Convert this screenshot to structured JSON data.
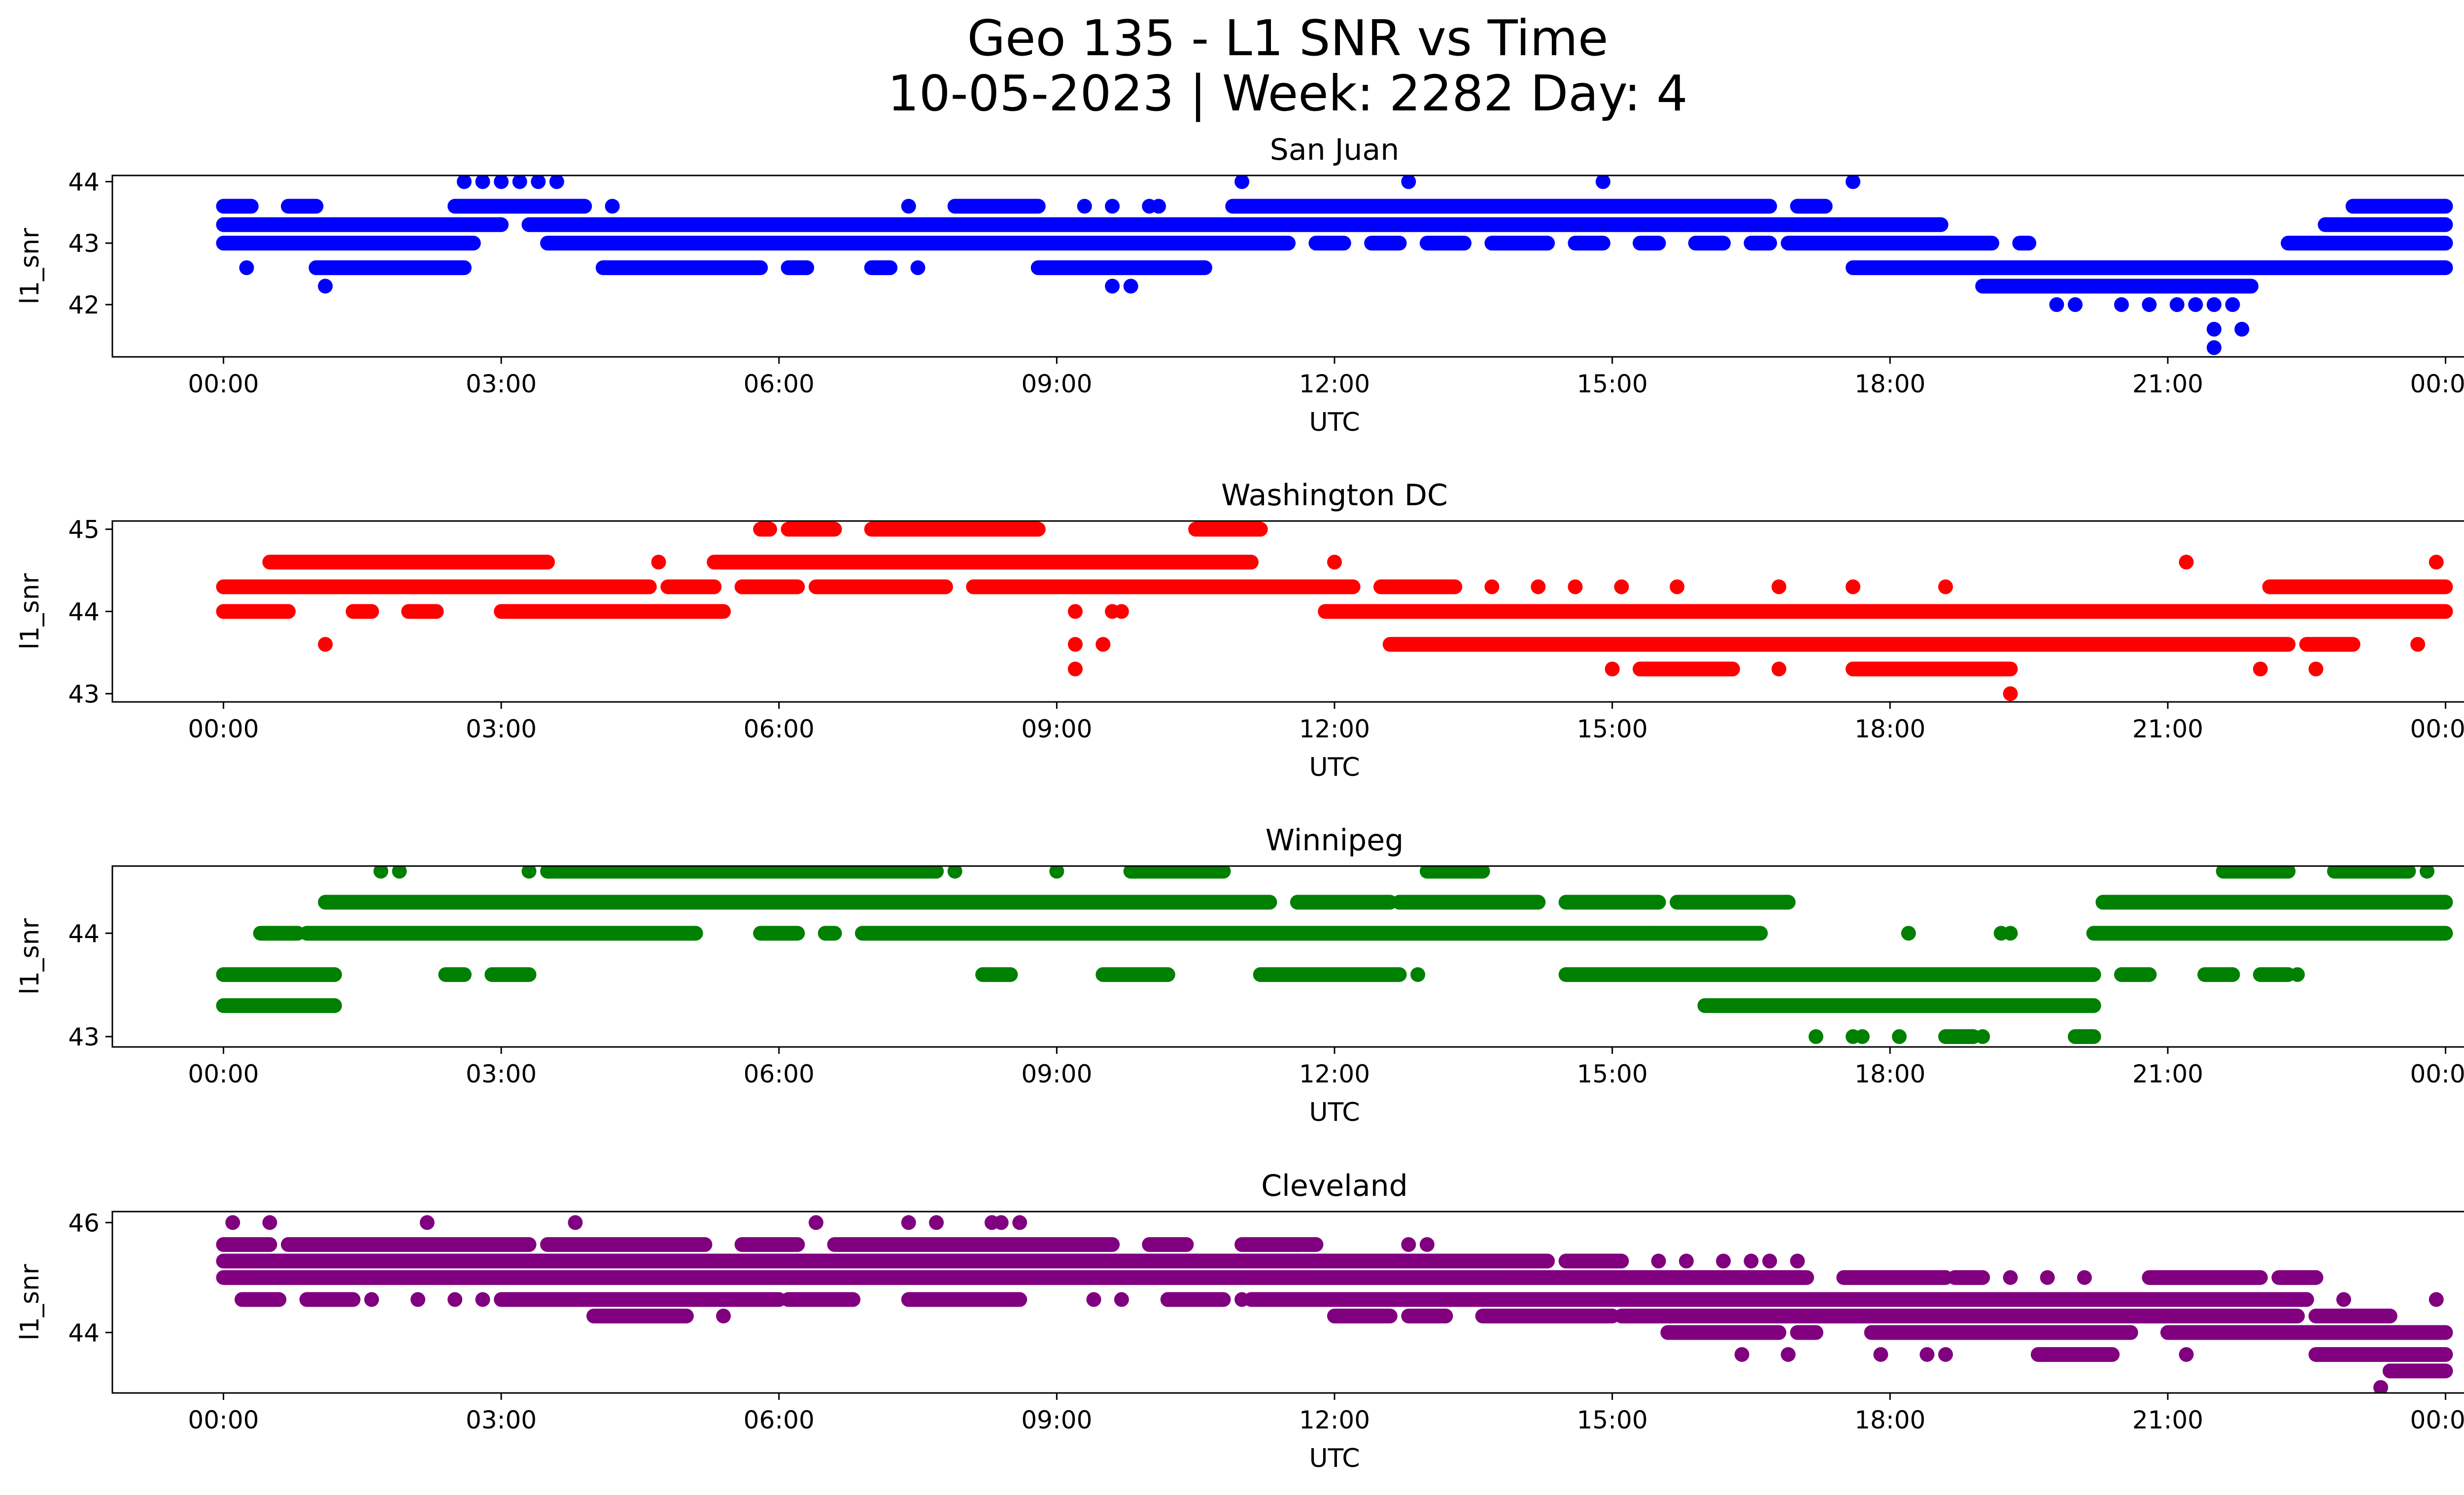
{
  "figure": {
    "title_line1": "Geo 135 - L1 SNR vs Time",
    "title_line2": "10-05-2023 | Week: 2282 Day: 4"
  },
  "chart_data": [
    {
      "type": "scatter",
      "title": "San Juan",
      "xlabel": "UTC",
      "ylabel": "l1_snr",
      "color": "#0000ff",
      "xlim": [
        -1.2,
        25.2
      ],
      "ylim": [
        41.15,
        44.1
      ],
      "xticks": [
        "00:00",
        "03:00",
        "06:00",
        "09:00",
        "12:00",
        "15:00",
        "18:00",
        "21:00",
        "00:00"
      ],
      "yticks": [
        42,
        43,
        44
      ],
      "bands": [
        {
          "y": 43.0,
          "ranges": [
            [
              0.0,
              2.7
            ],
            [
              3.5,
              11.5
            ],
            [
              11.8,
              12.1
            ],
            [
              12.4,
              12.7
            ],
            [
              13.0,
              13.4
            ],
            [
              13.7,
              14.3
            ],
            [
              14.6,
              14.9
            ],
            [
              15.3,
              15.5
            ],
            [
              15.9,
              16.2
            ],
            [
              16.5,
              16.7
            ],
            [
              16.9,
              19.1
            ],
            [
              19.4,
              19.5
            ],
            [
              22.3,
              24.0
            ]
          ]
        },
        {
          "y": 43.3,
          "ranges": [
            [
              0.0,
              3.0
            ],
            [
              3.3,
              17.0
            ],
            [
              17.0,
              18.55
            ],
            [
              22.7,
              24.0
            ]
          ]
        },
        {
          "y": 43.6,
          "ranges": [
            [
              0.0,
              0.3
            ],
            [
              0.7,
              1.0
            ],
            [
              2.5,
              3.9
            ],
            [
              7.9,
              8.8
            ],
            [
              10.9,
              16.7
            ],
            [
              17.0,
              17.3
            ],
            [
              23.0,
              24.0
            ]
          ]
        },
        {
          "y": 42.6,
          "ranges": [
            [
              1.0,
              2.6
            ],
            [
              4.1,
              5.8
            ],
            [
              6.1,
              6.3
            ],
            [
              7.0,
              7.2
            ],
            [
              8.8,
              10.6
            ],
            [
              17.6,
              24.0
            ]
          ]
        },
        {
          "y": 42.3,
          "ranges": [
            [
              19.0,
              21.9
            ]
          ]
        }
      ],
      "points": [
        [
          0.25,
          42.6
        ],
        [
          1.1,
          42.3
        ],
        [
          2.6,
          44.0
        ],
        [
          2.8,
          44.0
        ],
        [
          3.0,
          44.0
        ],
        [
          3.2,
          44.0
        ],
        [
          3.4,
          44.0
        ],
        [
          3.6,
          44.0
        ],
        [
          4.2,
          43.6
        ],
        [
          7.4,
          43.6
        ],
        [
          7.5,
          42.6
        ],
        [
          9.3,
          43.6
        ],
        [
          9.6,
          43.6
        ],
        [
          10.0,
          43.6
        ],
        [
          10.1,
          43.6
        ],
        [
          9.6,
          42.3
        ],
        [
          9.8,
          42.3
        ],
        [
          11.0,
          44.0
        ],
        [
          12.8,
          44.0
        ],
        [
          14.9,
          44.0
        ],
        [
          17.6,
          44.0
        ],
        [
          19.8,
          42.0
        ],
        [
          20.0,
          42.0
        ],
        [
          20.5,
          42.0
        ],
        [
          20.8,
          42.0
        ],
        [
          21.1,
          42.0
        ],
        [
          21.3,
          42.0
        ],
        [
          21.5,
          42.0
        ],
        [
          21.7,
          42.0
        ],
        [
          21.5,
          41.6
        ],
        [
          21.5,
          41.3
        ],
        [
          21.8,
          41.6
        ]
      ]
    },
    {
      "type": "scatter",
      "title": "Washington DC",
      "xlabel": "UTC",
      "ylabel": "l1_snr",
      "color": "#ff0000",
      "xlim": [
        -1.2,
        25.2
      ],
      "ylim": [
        42.9,
        45.1
      ],
      "xticks": [
        "00:00",
        "03:00",
        "06:00",
        "09:00",
        "12:00",
        "15:00",
        "18:00",
        "21:00",
        "00:00"
      ],
      "yticks": [
        43,
        44,
        45
      ],
      "bands": [
        {
          "y": 44.3,
          "ranges": [
            [
              0.0,
              4.6
            ],
            [
              4.8,
              5.3
            ],
            [
              5.6,
              6.2
            ],
            [
              6.4,
              7.8
            ],
            [
              8.1,
              12.2
            ],
            [
              12.5,
              13.3
            ],
            [
              22.1,
              24.0
            ]
          ]
        },
        {
          "y": 44.0,
          "ranges": [
            [
              0.0,
              0.7
            ],
            [
              1.4,
              1.6
            ],
            [
              2.0,
              2.3
            ],
            [
              3.0,
              5.4
            ],
            [
              11.9,
              24.0
            ]
          ]
        },
        {
          "y": 44.6,
          "ranges": [
            [
              0.5,
              3.5
            ],
            [
              5.3,
              11.1
            ]
          ]
        },
        {
          "y": 45.0,
          "ranges": [
            [
              5.8,
              5.9
            ],
            [
              6.1,
              6.6
            ],
            [
              7.0,
              8.8
            ],
            [
              10.5,
              11.2
            ]
          ]
        },
        {
          "y": 43.6,
          "ranges": [
            [
              12.6,
              22.3
            ],
            [
              22.5,
              23.0
            ]
          ]
        },
        {
          "y": 43.3,
          "ranges": [
            [
              15.3,
              16.3
            ],
            [
              17.6,
              19.3
            ]
          ]
        }
      ],
      "points": [
        [
          1.1,
          43.6
        ],
        [
          9.2,
          44.0
        ],
        [
          9.2,
          43.6
        ],
        [
          9.2,
          43.3
        ],
        [
          9.5,
          43.6
        ],
        [
          9.6,
          44.0
        ],
        [
          9.7,
          44.0
        ],
        [
          4.7,
          44.6
        ],
        [
          12.0,
          44.6
        ],
        [
          13.7,
          44.3
        ],
        [
          14.2,
          44.3
        ],
        [
          14.6,
          44.3
        ],
        [
          15.1,
          44.3
        ],
        [
          15.7,
          44.3
        ],
        [
          16.8,
          44.3
        ],
        [
          17.6,
          44.3
        ],
        [
          18.6,
          44.3
        ],
        [
          21.2,
          44.6
        ],
        [
          22.5,
          44.3
        ],
        [
          23.7,
          43.6
        ],
        [
          23.9,
          44.6
        ],
        [
          19.3,
          43.0
        ],
        [
          15.0,
          43.3
        ],
        [
          16.8,
          43.3
        ],
        [
          22.0,
          43.3
        ],
        [
          22.6,
          43.3
        ]
      ]
    },
    {
      "type": "scatter",
      "title": "Winnipeg",
      "xlabel": "UTC",
      "ylabel": "l1_snr",
      "color": "#008000",
      "xlim": [
        -1.2,
        25.2
      ],
      "ylim": [
        42.9,
        44.65
      ],
      "xticks": [
        "00:00",
        "03:00",
        "06:00",
        "09:00",
        "12:00",
        "15:00",
        "18:00",
        "21:00",
        "00:00"
      ],
      "yticks": [
        43,
        44
      ],
      "bands": [
        {
          "y": 43.6,
          "ranges": [
            [
              0.0,
              1.2
            ],
            [
              2.4,
              2.6
            ],
            [
              2.9,
              3.3
            ],
            [
              8.2,
              8.5
            ],
            [
              9.5,
              10.2
            ],
            [
              11.2,
              12.7
            ],
            [
              14.5,
              20.2
            ],
            [
              20.5,
              20.8
            ],
            [
              21.4,
              21.7
            ],
            [
              22.0,
              22.3
            ]
          ]
        },
        {
          "y": 43.3,
          "ranges": [
            [
              0.0,
              1.2
            ],
            [
              16.0,
              20.2
            ]
          ]
        },
        {
          "y": 44.0,
          "ranges": [
            [
              0.4,
              0.8
            ],
            [
              0.9,
              5.1
            ],
            [
              5.8,
              6.2
            ],
            [
              6.5,
              6.6
            ],
            [
              6.9,
              16.6
            ],
            [
              20.2,
              24.0
            ]
          ]
        },
        {
          "y": 44.3,
          "ranges": [
            [
              1.1,
              11.3
            ],
            [
              11.6,
              12.6
            ],
            [
              12.7,
              14.2
            ],
            [
              14.5,
              15.5
            ],
            [
              15.7,
              16.9
            ],
            [
              20.3,
              24.0
            ]
          ]
        },
        {
          "y": 44.6,
          "ranges": [
            [
              3.5,
              4.8
            ],
            [
              4.8,
              7.7
            ],
            [
              9.8,
              10.8
            ],
            [
              13.0,
              13.6
            ],
            [
              21.6,
              22.3
            ],
            [
              22.8,
              23.6
            ]
          ]
        },
        {
          "y": 43.0,
          "ranges": [
            [
              18.6,
              18.9
            ],
            [
              20.0,
              20.2
            ]
          ]
        }
      ],
      "points": [
        [
          1.7,
          44.6
        ],
        [
          1.9,
          44.6
        ],
        [
          3.3,
          44.6
        ],
        [
          7.9,
          44.6
        ],
        [
          9.0,
          44.6
        ],
        [
          12.9,
          43.6
        ],
        [
          23.8,
          44.6
        ],
        [
          23.1,
          44.6
        ],
        [
          17.2,
          43.0
        ],
        [
          17.6,
          43.0
        ],
        [
          17.7,
          43.0
        ],
        [
          18.1,
          43.0
        ],
        [
          19.0,
          43.0
        ],
        [
          18.2,
          44.0
        ],
        [
          19.2,
          44.0
        ],
        [
          19.3,
          44.0
        ],
        [
          22.4,
          43.6
        ],
        [
          15.4,
          44.0
        ]
      ]
    },
    {
      "type": "scatter",
      "title": "Cleveland",
      "xlabel": "UTC",
      "ylabel": "l1_snr",
      "color": "#800080",
      "xlim": [
        -1.2,
        25.2
      ],
      "ylim": [
        42.9,
        46.2
      ],
      "xticks": [
        "00:00",
        "03:00",
        "06:00",
        "09:00",
        "12:00",
        "15:00",
        "18:00",
        "21:00",
        "00:00"
      ],
      "yticks": [
        44,
        46
      ],
      "bands": [
        {
          "y": 45.6,
          "ranges": [
            [
              0.0,
              0.5
            ],
            [
              0.7,
              3.3
            ],
            [
              3.5,
              5.2
            ],
            [
              5.6,
              6.2
            ],
            [
              6.6,
              9.6
            ],
            [
              10.0,
              10.4
            ],
            [
              11.0,
              11.8
            ]
          ]
        },
        {
          "y": 45.3,
          "ranges": [
            [
              0.0,
              11.6
            ],
            [
              11.6,
              14.3
            ],
            [
              14.5,
              15.1
            ]
          ]
        },
        {
          "y": 45.0,
          "ranges": [
            [
              0.0,
              17.1
            ],
            [
              17.5,
              18.6
            ],
            [
              18.7,
              19.0
            ],
            [
              20.8,
              22.0
            ],
            [
              22.2,
              22.6
            ]
          ]
        },
        {
          "y": 44.6,
          "ranges": [
            [
              0.2,
              0.6
            ],
            [
              0.9,
              1.4
            ],
            [
              3.0,
              6.0
            ],
            [
              6.1,
              6.8
            ],
            [
              7.4,
              8.6
            ],
            [
              10.2,
              10.8
            ],
            [
              11.1,
              22.5
            ]
          ]
        },
        {
          "y": 44.3,
          "ranges": [
            [
              4.0,
              5.0
            ],
            [
              12.0,
              12.6
            ],
            [
              12.8,
              13.2
            ],
            [
              13.6,
              15.0
            ],
            [
              15.1,
              22.4
            ],
            [
              22.6,
              23.4
            ]
          ]
        },
        {
          "y": 44.0,
          "ranges": [
            [
              15.6,
              16.8
            ],
            [
              17.0,
              17.2
            ],
            [
              17.8,
              20.6
            ],
            [
              21.0,
              24.0
            ]
          ]
        },
        {
          "y": 43.6,
          "ranges": [
            [
              19.6,
              20.4
            ],
            [
              22.6,
              24.0
            ]
          ]
        },
        {
          "y": 43.3,
          "ranges": [
            [
              23.4,
              24.0
            ]
          ]
        }
      ],
      "points": [
        [
          0.1,
          46.0
        ],
        [
          0.5,
          46.0
        ],
        [
          2.2,
          46.0
        ],
        [
          3.8,
          46.0
        ],
        [
          6.4,
          46.0
        ],
        [
          7.4,
          46.0
        ],
        [
          7.7,
          46.0
        ],
        [
          8.3,
          46.0
        ],
        [
          8.4,
          46.0
        ],
        [
          8.6,
          46.0
        ],
        [
          12.8,
          45.6
        ],
        [
          13.0,
          45.6
        ],
        [
          16.4,
          43.6
        ],
        [
          16.9,
          43.6
        ],
        [
          17.9,
          43.6
        ],
        [
          18.4,
          43.6
        ],
        [
          18.6,
          43.6
        ],
        [
          21.2,
          43.6
        ],
        [
          23.3,
          43.0
        ],
        [
          23.9,
          44.6
        ],
        [
          22.9,
          44.3
        ],
        [
          1.6,
          44.6
        ],
        [
          2.1,
          44.6
        ],
        [
          2.5,
          44.6
        ],
        [
          2.8,
          44.6
        ],
        [
          8.0,
          44.6
        ],
        [
          9.4,
          44.6
        ],
        [
          9.7,
          44.6
        ],
        [
          10.2,
          44.6
        ],
        [
          5.4,
          44.3
        ],
        [
          11.0,
          44.6
        ],
        [
          11.1,
          45.6
        ],
        [
          11.3,
          45.6
        ],
        [
          11.6,
          45.6
        ],
        [
          15.5,
          45.3
        ],
        [
          15.8,
          45.3
        ],
        [
          16.2,
          45.3
        ],
        [
          16.5,
          45.3
        ],
        [
          16.7,
          45.3
        ],
        [
          17.0,
          45.3
        ],
        [
          19.3,
          45.0
        ],
        [
          19.7,
          45.0
        ],
        [
          20.1,
          45.0
        ],
        [
          22.9,
          44.6
        ],
        [
          23.3,
          44.3
        ]
      ]
    }
  ]
}
